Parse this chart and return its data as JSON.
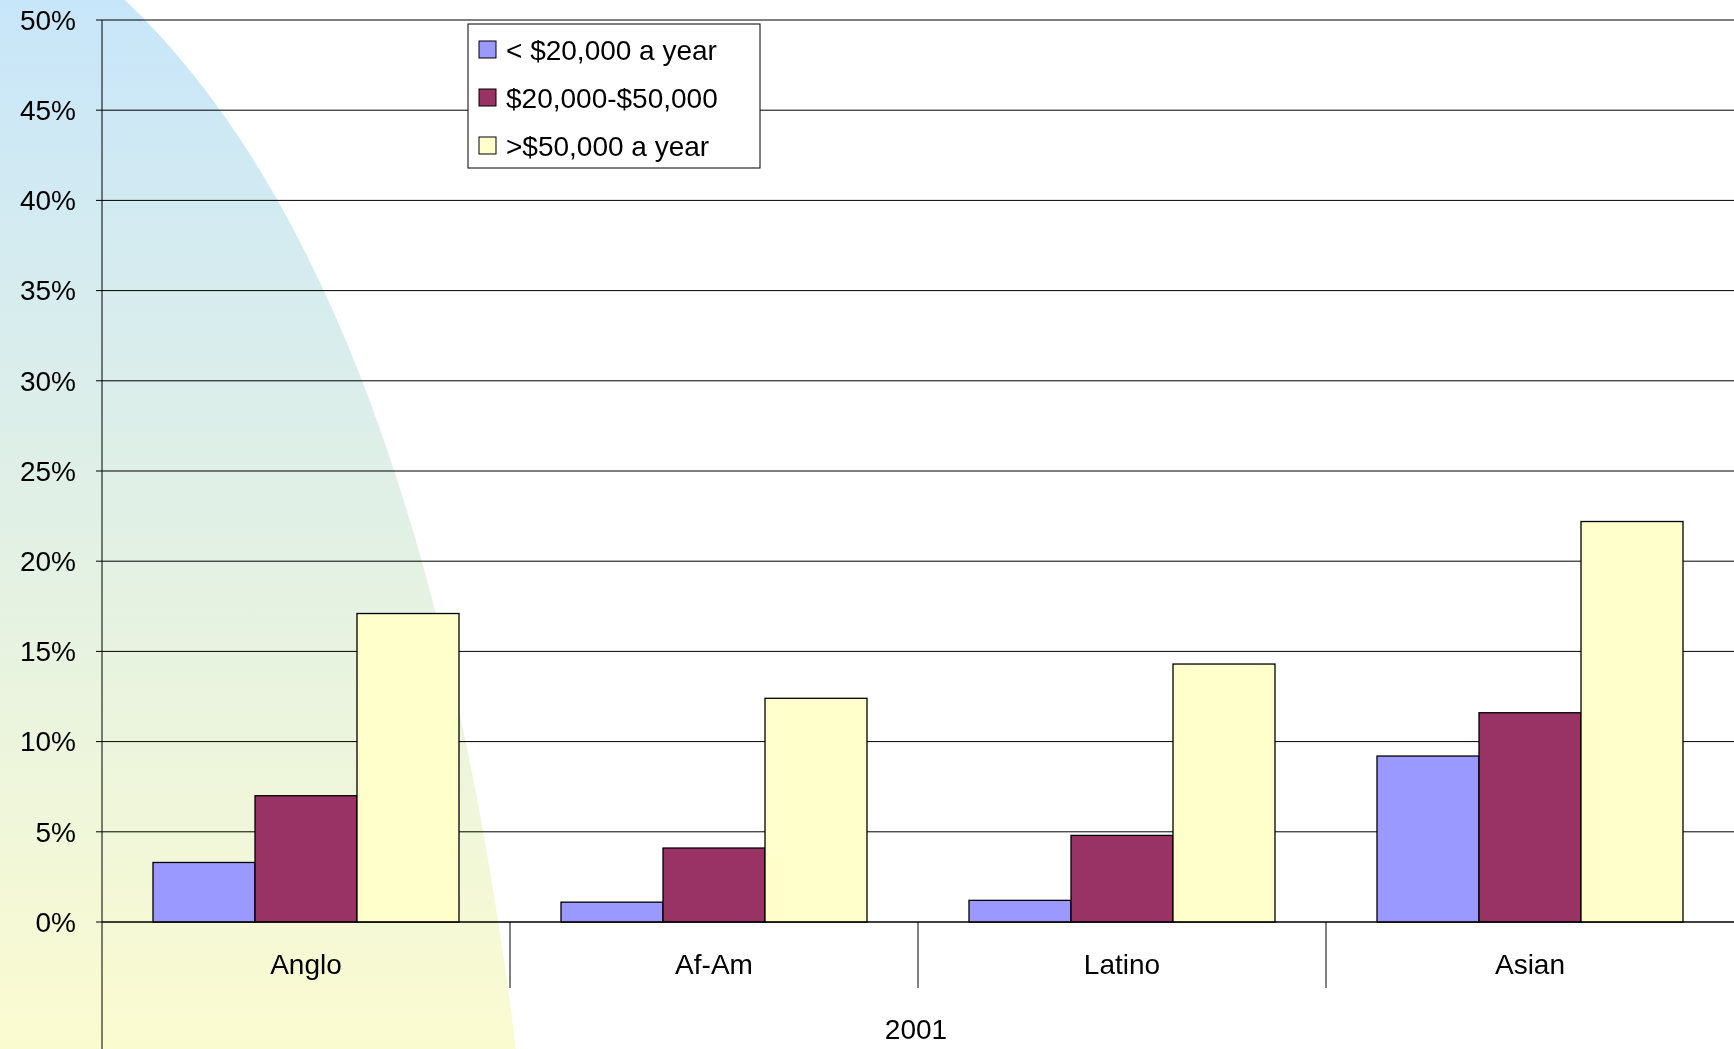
{
  "chart_data": {
    "type": "bar",
    "xlabel": "2001",
    "categories": [
      "Anglo",
      "Af-Am",
      "Latino",
      "Asian"
    ],
    "series": [
      {
        "name": "< $20,000 a year",
        "color": "#9999ff",
        "values": [
          3.3,
          1.1,
          1.2,
          9.2
        ]
      },
      {
        "name": "$20,000-$50,000",
        "color": "#993366",
        "values": [
          7.0,
          4.1,
          4.8,
          11.6
        ]
      },
      {
        "name": ">$50,000 a year",
        "color": "#ffffcc",
        "values": [
          17.1,
          12.4,
          14.3,
          22.2
        ]
      }
    ],
    "ylim": [
      0,
      50
    ],
    "yticks": [
      {
        "value": 0,
        "label": "0%"
      },
      {
        "value": 5,
        "label": "5%"
      },
      {
        "value": 10,
        "label": "10%"
      },
      {
        "value": 15,
        "label": "15%"
      },
      {
        "value": 20,
        "label": "20%"
      },
      {
        "value": 25,
        "label": "25%"
      },
      {
        "value": 30,
        "label": "30%"
      },
      {
        "value": 35,
        "label": "35%"
      },
      {
        "value": 40,
        "label": "40%"
      },
      {
        "value": 45,
        "label": "45%"
      },
      {
        "value": 50,
        "label": "50%"
      }
    ],
    "grid": "y",
    "legend": "top"
  }
}
